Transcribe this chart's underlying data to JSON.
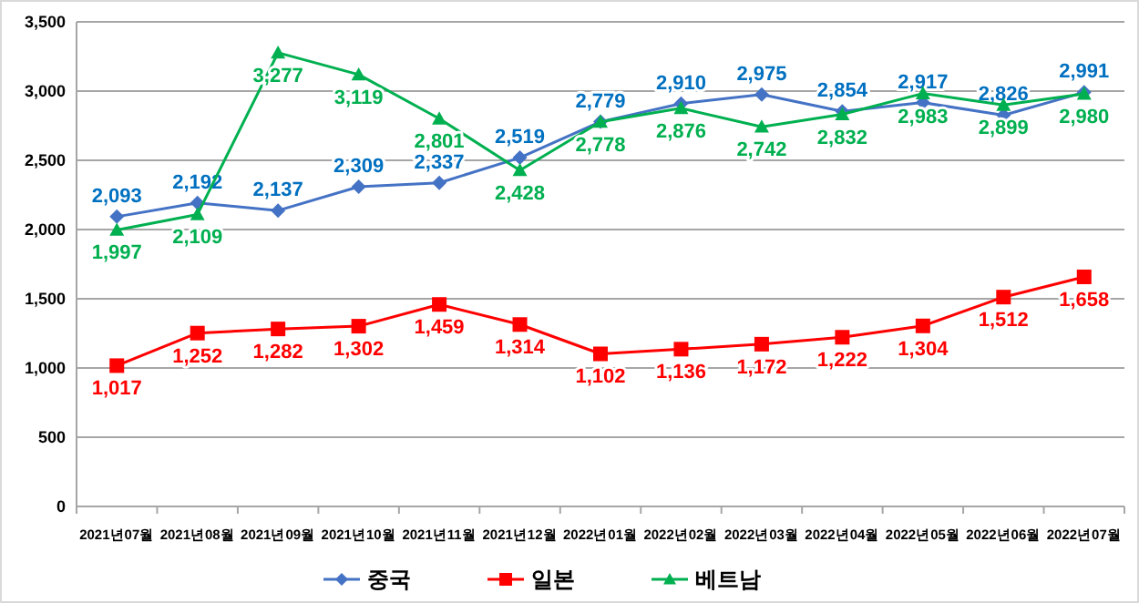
{
  "chart_data": {
    "type": "line",
    "categories": [
      "2021년07월",
      "2021년08월",
      "2021년09월",
      "2021년10월",
      "2021년11월",
      "2021년12월",
      "2022년01월",
      "2022년02월",
      "2022년03월",
      "2022년04월",
      "2022년05월",
      "2022년06월",
      "2022년07월"
    ],
    "series": [
      {
        "name": "중국",
        "color": "#4472c4",
        "marker": "diamond",
        "values": [
          2093,
          2192,
          2137,
          2309,
          2337,
          2519,
          2779,
          2910,
          2975,
          2854,
          2917,
          2826,
          2991
        ],
        "value_labels": [
          "2,093",
          "2,192",
          "2,137",
          "2,309",
          "2,337",
          "2,519",
          "2,779",
          "2,910",
          "2,975",
          "2,854",
          "2,917",
          "2,826",
          "2,991"
        ]
      },
      {
        "name": "일본",
        "color": "#ff0000",
        "marker": "square",
        "values": [
          1017,
          1252,
          1282,
          1302,
          1459,
          1314,
          1102,
          1136,
          1172,
          1222,
          1304,
          1512,
          1658
        ],
        "value_labels": [
          "1,017",
          "1,252",
          "1,282",
          "1,302",
          "1,459",
          "1,314",
          "1,102",
          "1,136",
          "1,172",
          "1,222",
          "1,304",
          "1,512",
          "1,658"
        ]
      },
      {
        "name": "베트남",
        "color": "#00b050",
        "marker": "triangle",
        "values": [
          1997,
          2109,
          3277,
          3119,
          2801,
          2428,
          2778,
          2876,
          2742,
          2832,
          2983,
          2899,
          2980
        ],
        "value_labels": [
          "1,997",
          "2,109",
          "3,277",
          "3,119",
          "2,801",
          "2,428",
          "2,778",
          "2,876",
          "2,742",
          "2,832",
          "2,983",
          "2,899",
          "2,980"
        ]
      }
    ],
    "ylim": [
      0,
      3500
    ],
    "yticks": [
      {
        "value": 0,
        "label": "0"
      },
      {
        "value": 500,
        "label": "500"
      },
      {
        "value": 1000,
        "label": "1,000"
      },
      {
        "value": 1500,
        "label": "1,500"
      },
      {
        "value": 2000,
        "label": "2,000"
      },
      {
        "value": 2500,
        "label": "2,500"
      },
      {
        "value": 3000,
        "label": "3,000"
      },
      {
        "value": 3500,
        "label": "3,500"
      }
    ],
    "grid": "y",
    "legend": "bottom"
  }
}
